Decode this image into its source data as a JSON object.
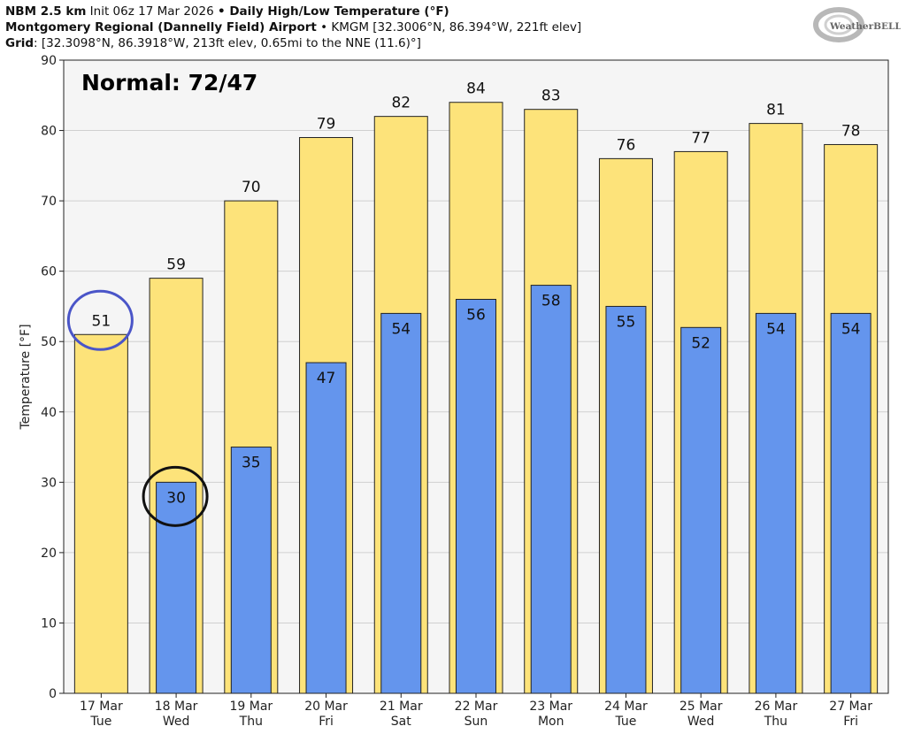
{
  "header": {
    "line1_bold": "NBM 2.5 km",
    "line1_normal": " Init 06z 17 Mar 2026 ",
    "line1_bullet": "•",
    "line1_bold2": " Daily High/Low Temperature (°F)",
    "line2_bold": "Montgomery Regional (Dannelly Field) Airport",
    "line2_normal": " • KMGM [32.3006°N, 86.394°W, 221ft elev]",
    "line3_bold": "Grid",
    "line3_normal": ": [32.3098°N, 86.3918°W, 213ft elev, 0.65mi to the NNE (11.6)°]"
  },
  "logo": {
    "text": "WeatherBELL"
  },
  "chart_data": {
    "type": "bar",
    "categories": [
      "17 Mar\nTue",
      "18 Mar\nWed",
      "19 Mar\nThu",
      "20 Mar\nFri",
      "21 Mar\nSat",
      "22 Mar\nSun",
      "23 Mar\nMon",
      "24 Mar\nTue",
      "25 Mar\nWed",
      "26 Mar\nThu",
      "27 Mar\nFri"
    ],
    "series": [
      {
        "name": "High",
        "values": [
          51,
          59,
          70,
          79,
          82,
          84,
          83,
          76,
          77,
          81,
          78
        ],
        "color": "#fde37a"
      },
      {
        "name": "Low",
        "values": [
          null,
          30,
          35,
          47,
          54,
          56,
          58,
          55,
          52,
          54,
          54
        ],
        "color": "#6495ed"
      }
    ],
    "ylabel": "Temperature [°F]",
    "ylim": [
      0,
      90
    ],
    "yticks": [
      0,
      10,
      20,
      30,
      40,
      50,
      60,
      70,
      80,
      90
    ],
    "grid": true,
    "annotation": "Normal: 72/47",
    "circled": [
      {
        "series": "High",
        "day": "17 Mar",
        "color": "#4a55c8"
      },
      {
        "series": "Low",
        "day": "18 Mar",
        "color": "#111111"
      }
    ]
  }
}
